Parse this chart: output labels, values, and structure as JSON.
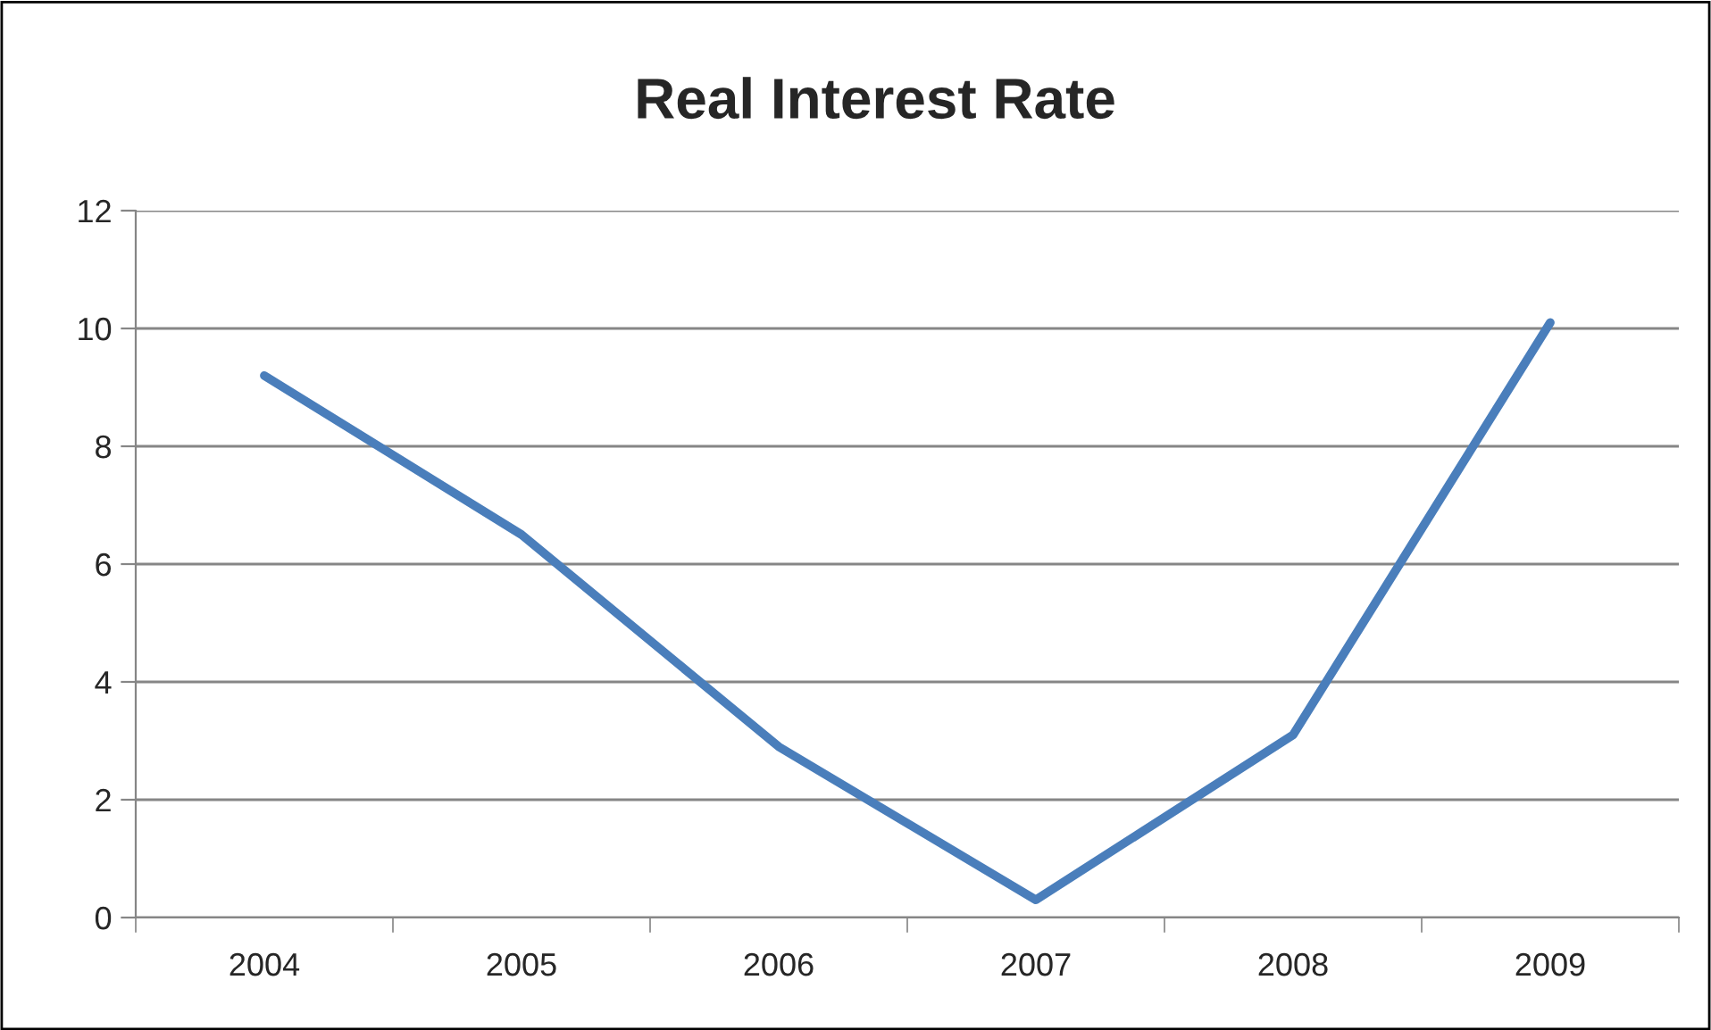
{
  "chart_data": {
    "type": "line",
    "title": "Real Interest Rate",
    "categories": [
      "2004",
      "2005",
      "2006",
      "2007",
      "2008",
      "2009"
    ],
    "series": [
      {
        "color": "#4a7ebb",
        "values": [
          9.2,
          6.5,
          2.9,
          0.3,
          3.1,
          10.1
        ]
      }
    ],
    "ylim": [
      0,
      12
    ],
    "yticks": [
      0,
      2,
      4,
      6,
      8,
      10,
      12
    ],
    "grid": "y",
    "legend": false,
    "marker": "none",
    "line_style": "solid"
  }
}
